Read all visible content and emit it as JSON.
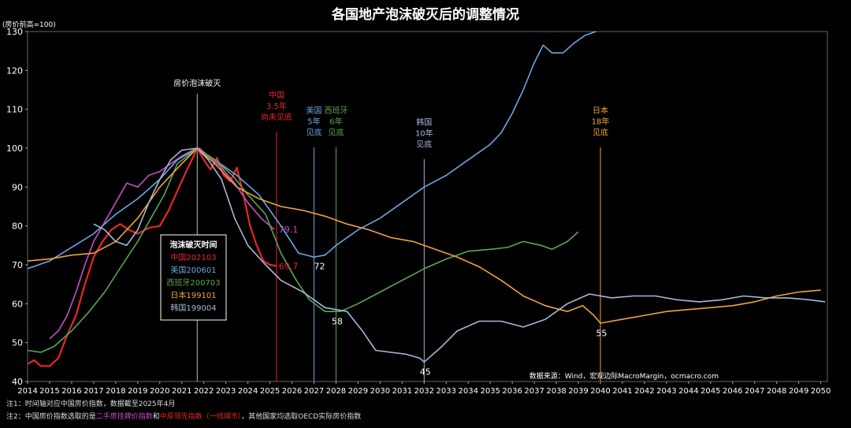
{
  "chart_data": {
    "type": "line",
    "title": "各国地产泡沫破灭后的调整情况",
    "ylabel": "(房价前高=100)",
    "ylim": [
      40,
      130
    ],
    "xlim": [
      2014,
      2050.3
    ],
    "y_ticks": [
      40,
      50,
      60,
      70,
      80,
      90,
      100,
      110,
      120,
      130
    ],
    "x_ticks": [
      "2014",
      "2015",
      "2016",
      "2017",
      "2018",
      "2019",
      "2020",
      "2021",
      "2022",
      "2023",
      "2024",
      "2025",
      "2026",
      "2027",
      "2028",
      "2029",
      "2030",
      "2031",
      "2032",
      "2033",
      "2034",
      "2035",
      "2036",
      "2037",
      "2038",
      "2039",
      "2040",
      "2041",
      "2042",
      "2043",
      "2044",
      "2045",
      "2046",
      "2047",
      "2048",
      "2049",
      "2050"
    ],
    "source": "数据来源：Wind，宏观边际MacroMargin，ocmacro.com",
    "series": [
      {
        "name": "中国202103",
        "color": "#e8262b",
        "points": [
          [
            2014,
            44.5
          ],
          [
            2014.3,
            45.5
          ],
          [
            2014.6,
            44
          ],
          [
            2015,
            44
          ],
          [
            2015.4,
            46
          ],
          [
            2015.8,
            52
          ],
          [
            2016.2,
            57
          ],
          [
            2016.6,
            65
          ],
          [
            2017,
            72
          ],
          [
            2017.4,
            76
          ],
          [
            2017.8,
            79
          ],
          [
            2018.2,
            80.5
          ],
          [
            2018.6,
            79
          ],
          [
            2019,
            78
          ],
          [
            2019.5,
            79.5
          ],
          [
            2020,
            80
          ],
          [
            2020.4,
            84
          ],
          [
            2020.8,
            89
          ],
          [
            2021.2,
            94
          ],
          [
            2021.5,
            97.5
          ],
          [
            2021.7,
            100
          ],
          [
            2022.0,
            97
          ],
          [
            2022.3,
            94.5
          ],
          [
            2022.6,
            97.5
          ],
          [
            2022.9,
            93
          ],
          [
            2023.2,
            91.5
          ],
          [
            2023.5,
            95
          ],
          [
            2023.8,
            88
          ],
          [
            2024.1,
            80
          ],
          [
            2024.4,
            75
          ],
          [
            2024.7,
            71
          ],
          [
            2025.0,
            70
          ],
          [
            2025.3,
            69.7
          ]
        ]
      },
      {
        "name": "二手房挂牌价指数",
        "color": "#c94fc9",
        "points": [
          [
            2015,
            51
          ],
          [
            2015.4,
            53
          ],
          [
            2015.8,
            57
          ],
          [
            2016.2,
            63
          ],
          [
            2016.6,
            70
          ],
          [
            2017,
            76
          ],
          [
            2017.5,
            81
          ],
          [
            2018,
            86
          ],
          [
            2018.5,
            91
          ],
          [
            2019,
            90
          ],
          [
            2019.5,
            93
          ],
          [
            2020,
            94
          ],
          [
            2020.5,
            96
          ],
          [
            2021,
            98
          ],
          [
            2021.5,
            99.5
          ],
          [
            2021.8,
            100
          ],
          [
            2022.2,
            98
          ],
          [
            2022.8,
            95
          ],
          [
            2023.4,
            91
          ],
          [
            2024,
            86
          ],
          [
            2024.6,
            82
          ],
          [
            2025.2,
            79.1
          ]
        ]
      },
      {
        "name": "美国200601",
        "color": "#6ba6e0",
        "points": [
          [
            2014,
            69
          ],
          [
            2015,
            71
          ],
          [
            2016,
            74.5
          ],
          [
            2017,
            78
          ],
          [
            2018,
            83
          ],
          [
            2019,
            87
          ],
          [
            2020,
            92
          ],
          [
            2020.8,
            97
          ],
          [
            2021.7,
            100
          ],
          [
            2022.5,
            97
          ],
          [
            2023.5,
            93
          ],
          [
            2024.5,
            88
          ],
          [
            2025.5,
            80
          ],
          [
            2026.3,
            73
          ],
          [
            2027,
            72
          ],
          [
            2027.5,
            72.5
          ],
          [
            2028,
            75
          ],
          [
            2029,
            79
          ],
          [
            2030,
            82
          ],
          [
            2031,
            86
          ],
          [
            2032,
            90
          ],
          [
            2033,
            93
          ],
          [
            2034,
            97
          ],
          [
            2035,
            101
          ],
          [
            2035.5,
            104
          ],
          [
            2036,
            109
          ],
          [
            2036.5,
            115
          ],
          [
            2037,
            122
          ],
          [
            2037.4,
            126.5
          ],
          [
            2037.8,
            124.5
          ],
          [
            2038.3,
            124.5
          ],
          [
            2038.8,
            127
          ],
          [
            2039.3,
            129
          ],
          [
            2039.8,
            130
          ]
        ]
      },
      {
        "name": "西班牙200703",
        "color": "#5aa84f",
        "points": [
          [
            2014,
            48
          ],
          [
            2014.6,
            47.5
          ],
          [
            2015.2,
            49
          ],
          [
            2016,
            53
          ],
          [
            2016.8,
            58
          ],
          [
            2017.5,
            63
          ],
          [
            2018.3,
            70
          ],
          [
            2019,
            76
          ],
          [
            2019.6,
            82
          ],
          [
            2020.2,
            88
          ],
          [
            2020.8,
            96
          ],
          [
            2021.7,
            100
          ],
          [
            2022.5,
            97
          ],
          [
            2023.3,
            93
          ],
          [
            2024,
            88
          ],
          [
            2024.8,
            83
          ],
          [
            2025.5,
            73
          ],
          [
            2026.2,
            66
          ],
          [
            2026.8,
            61
          ],
          [
            2027.5,
            58
          ],
          [
            2028.2,
            58
          ],
          [
            2029,
            60
          ],
          [
            2030,
            63
          ],
          [
            2031,
            66
          ],
          [
            2032,
            69
          ],
          [
            2033,
            71.5
          ],
          [
            2034,
            73.5
          ],
          [
            2035,
            74
          ],
          [
            2035.8,
            74.5
          ],
          [
            2036.5,
            76
          ],
          [
            2037.3,
            75
          ],
          [
            2037.8,
            74
          ],
          [
            2038.5,
            76
          ],
          [
            2039,
            78.5
          ]
        ]
      },
      {
        "name": "日本199101",
        "color": "#f0a23c",
        "points": [
          [
            2014,
            71
          ],
          [
            2015,
            71.5
          ],
          [
            2016,
            72.5
          ],
          [
            2017,
            73
          ],
          [
            2018,
            76
          ],
          [
            2019,
            82
          ],
          [
            2020,
            90
          ],
          [
            2021,
            96
          ],
          [
            2021.7,
            100
          ],
          [
            2022.5,
            96
          ],
          [
            2023.5,
            90
          ],
          [
            2024.5,
            87
          ],
          [
            2025.5,
            85
          ],
          [
            2026.5,
            84
          ],
          [
            2027.5,
            82.5
          ],
          [
            2028.5,
            80.5
          ],
          [
            2029.5,
            79
          ],
          [
            2030.5,
            77
          ],
          [
            2031.5,
            76
          ],
          [
            2032.5,
            74
          ],
          [
            2033.5,
            72
          ],
          [
            2034.5,
            69.5
          ],
          [
            2035.5,
            66
          ],
          [
            2036.5,
            62
          ],
          [
            2037.5,
            59.5
          ],
          [
            2038.5,
            58
          ],
          [
            2039.2,
            59.5
          ],
          [
            2039.7,
            57
          ],
          [
            2040,
            55
          ],
          [
            2041,
            56
          ],
          [
            2042,
            57
          ],
          [
            2043,
            58
          ],
          [
            2044,
            58.5
          ],
          [
            2045,
            59
          ],
          [
            2046,
            59.5
          ],
          [
            2047,
            60.5
          ],
          [
            2048,
            62
          ],
          [
            2049,
            63
          ],
          [
            2050,
            63.5
          ]
        ]
      },
      {
        "name": "韩国199004",
        "color": "#a7b8d8",
        "points": [
          [
            2017,
            80.5
          ],
          [
            2017.5,
            79
          ],
          [
            2018,
            76
          ],
          [
            2018.5,
            75
          ],
          [
            2019,
            79
          ],
          [
            2019.5,
            86
          ],
          [
            2020,
            92
          ],
          [
            2020.5,
            97
          ],
          [
            2021,
            99.5
          ],
          [
            2021.7,
            100
          ],
          [
            2022.2,
            97
          ],
          [
            2022.8,
            92
          ],
          [
            2023.4,
            82
          ],
          [
            2024,
            75
          ],
          [
            2024.8,
            70
          ],
          [
            2025.5,
            66
          ],
          [
            2026.5,
            63
          ],
          [
            2027.5,
            59
          ],
          [
            2028.5,
            58
          ],
          [
            2029.2,
            53
          ],
          [
            2029.8,
            48
          ],
          [
            2030.5,
            47.5
          ],
          [
            2031.2,
            47
          ],
          [
            2031.8,
            46
          ],
          [
            2032,
            45
          ],
          [
            2032.8,
            49
          ],
          [
            2033.5,
            53
          ],
          [
            2034.5,
            55.5
          ],
          [
            2035.5,
            55.5
          ],
          [
            2036.5,
            54
          ],
          [
            2037.5,
            56
          ],
          [
            2038.5,
            60
          ],
          [
            2039.5,
            62.5
          ],
          [
            2040.5,
            61.5
          ],
          [
            2041.5,
            62
          ],
          [
            2042.5,
            62
          ],
          [
            2043.5,
            61
          ],
          [
            2044.5,
            60.5
          ],
          [
            2045.5,
            61
          ],
          [
            2046.5,
            62
          ],
          [
            2047.5,
            61.5
          ],
          [
            2048.5,
            61.5
          ],
          [
            2049.5,
            61
          ],
          [
            2050.2,
            60.5
          ]
        ]
      }
    ],
    "legend": {
      "title": "泡沫破灭时间",
      "items": [
        {
          "label": "中国202103",
          "color": "#e8262b"
        },
        {
          "label": "美国200601",
          "color": "#6ba6e0"
        },
        {
          "label": "西班牙200703",
          "color": "#5aa84f"
        },
        {
          "label": "日本199101",
          "color": "#f0a23c"
        },
        {
          "label": "韩国199004",
          "color": "#a7b8d8"
        }
      ]
    },
    "vlines": [
      {
        "x": 2021.7,
        "color": "#bbbbbb",
        "label_lines": [
          "房价泡沫破灭"
        ],
        "label_color": "#ffffff",
        "label_y": 116
      },
      {
        "x": 2025.3,
        "color": "#e8262b",
        "label_lines": [
          "中国",
          "3.5年",
          "尚未见底"
        ],
        "label_color": "#e8262b",
        "label_y": 113
      },
      {
        "x": 2027.0,
        "color": "#6ba6e0",
        "label_lines": [
          "美国",
          "5年",
          "见底"
        ],
        "label_color": "#6ba6e0",
        "label_y": 109
      },
      {
        "x": 2028.0,
        "color": "#5aa84f",
        "label_lines": [
          "西班牙",
          "6年",
          "见底"
        ],
        "label_color": "#5aa84f",
        "label_y": 109
      },
      {
        "x": 2032.0,
        "color": "#a7b8d8",
        "label_lines": [
          "韩国",
          "10年",
          "见底"
        ],
        "label_color": "#a7b8d8",
        "label_y": 106
      },
      {
        "x": 2040.0,
        "color": "#f0a23c",
        "label_lines": [
          "日本",
          "18年",
          "见底"
        ],
        "label_color": "#f0a23c",
        "label_y": 109
      }
    ],
    "annotations": [
      {
        "text": "79.1",
        "x": 2025.4,
        "y": 79.1,
        "color": "#c94fc9"
      },
      {
        "text": "69.7",
        "x": 2025.4,
        "y": 69.7,
        "color": "#e8262b"
      },
      {
        "text": "72",
        "x": 2027.0,
        "y": 69.7,
        "color": "#ffffff"
      },
      {
        "text": "58",
        "x": 2027.8,
        "y": 55.5,
        "color": "#ffffff"
      },
      {
        "text": "45",
        "x": 2031.8,
        "y": 42.5,
        "color": "#ffffff"
      },
      {
        "text": "55",
        "x": 2039.8,
        "y": 52.5,
        "color": "#ffffff"
      }
    ]
  },
  "notes": {
    "note1": "注1：时间轴对应中国房价指数，数据截至2025年4月",
    "note2_prefix": "注2：中国房价指数选取的是",
    "note2_pink": "二手房挂牌价指数",
    "note2_and": "和",
    "note2_red": "中原领先指数（一线城市）",
    "note2_suffix": "，其他国家均选取OECD实际房价指数"
  },
  "colors": {
    "pink": "#c94fc9",
    "red": "#e8262b"
  }
}
